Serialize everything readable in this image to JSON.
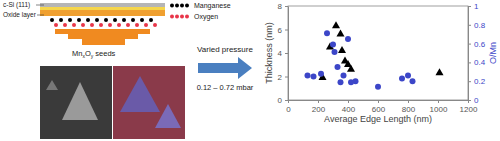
{
  "chart_data": {
    "type": "scatter",
    "xlabel": "Average Edge Length (nm)",
    "ylabel": "Thickness (nm)",
    "y2label": "O/Mn",
    "xlim": [
      0,
      1200
    ],
    "xticks": [
      0,
      200,
      400,
      600,
      800,
      1000,
      1200
    ],
    "ylim": [
      0,
      8
    ],
    "yticks": [
      0,
      2,
      4,
      6,
      8
    ],
    "y2lim": [
      0,
      1
    ],
    "y2ticks": [
      0,
      0.2,
      0.4,
      0.6,
      0.8,
      1
    ],
    "series": [
      {
        "color": "#000000",
        "marker": "triangle",
        "x": [
          230,
          280,
          320,
          350,
          360,
          380,
          400,
          420,
          1010
        ],
        "values": [
          1.9,
          4.5,
          6.3,
          5.6,
          4.2,
          3.3,
          3.0,
          2.6,
          2.3
        ]
      },
      {
        "color": "#3c46c8",
        "marker": "circle",
        "axis": "y2",
        "x": [
          130,
          170,
          220,
          260,
          300,
          310,
          330,
          350,
          370,
          400,
          420,
          450,
          600,
          760,
          800,
          830
        ],
        "values": [
          0.26,
          0.25,
          0.28,
          0.71,
          0.59,
          0.51,
          0.35,
          0.19,
          0.26,
          0.65,
          0.19,
          0.2,
          0.14,
          0.23,
          0.26,
          0.2
        ]
      }
    ]
  },
  "diagram": {
    "layers": [
      "c-Si (111)",
      "Oxide layer"
    ],
    "legend": [
      {
        "label": "Manganese",
        "color": "#000000"
      },
      {
        "label": "Oxygen",
        "color": "#e8364a"
      }
    ],
    "seeds_label": [
      "Mn",
      "x",
      "O",
      "y",
      " seeds"
    ],
    "arrow_top": "Varied pressure",
    "arrow_bottom": "0.12 – 0.72 mbar"
  }
}
